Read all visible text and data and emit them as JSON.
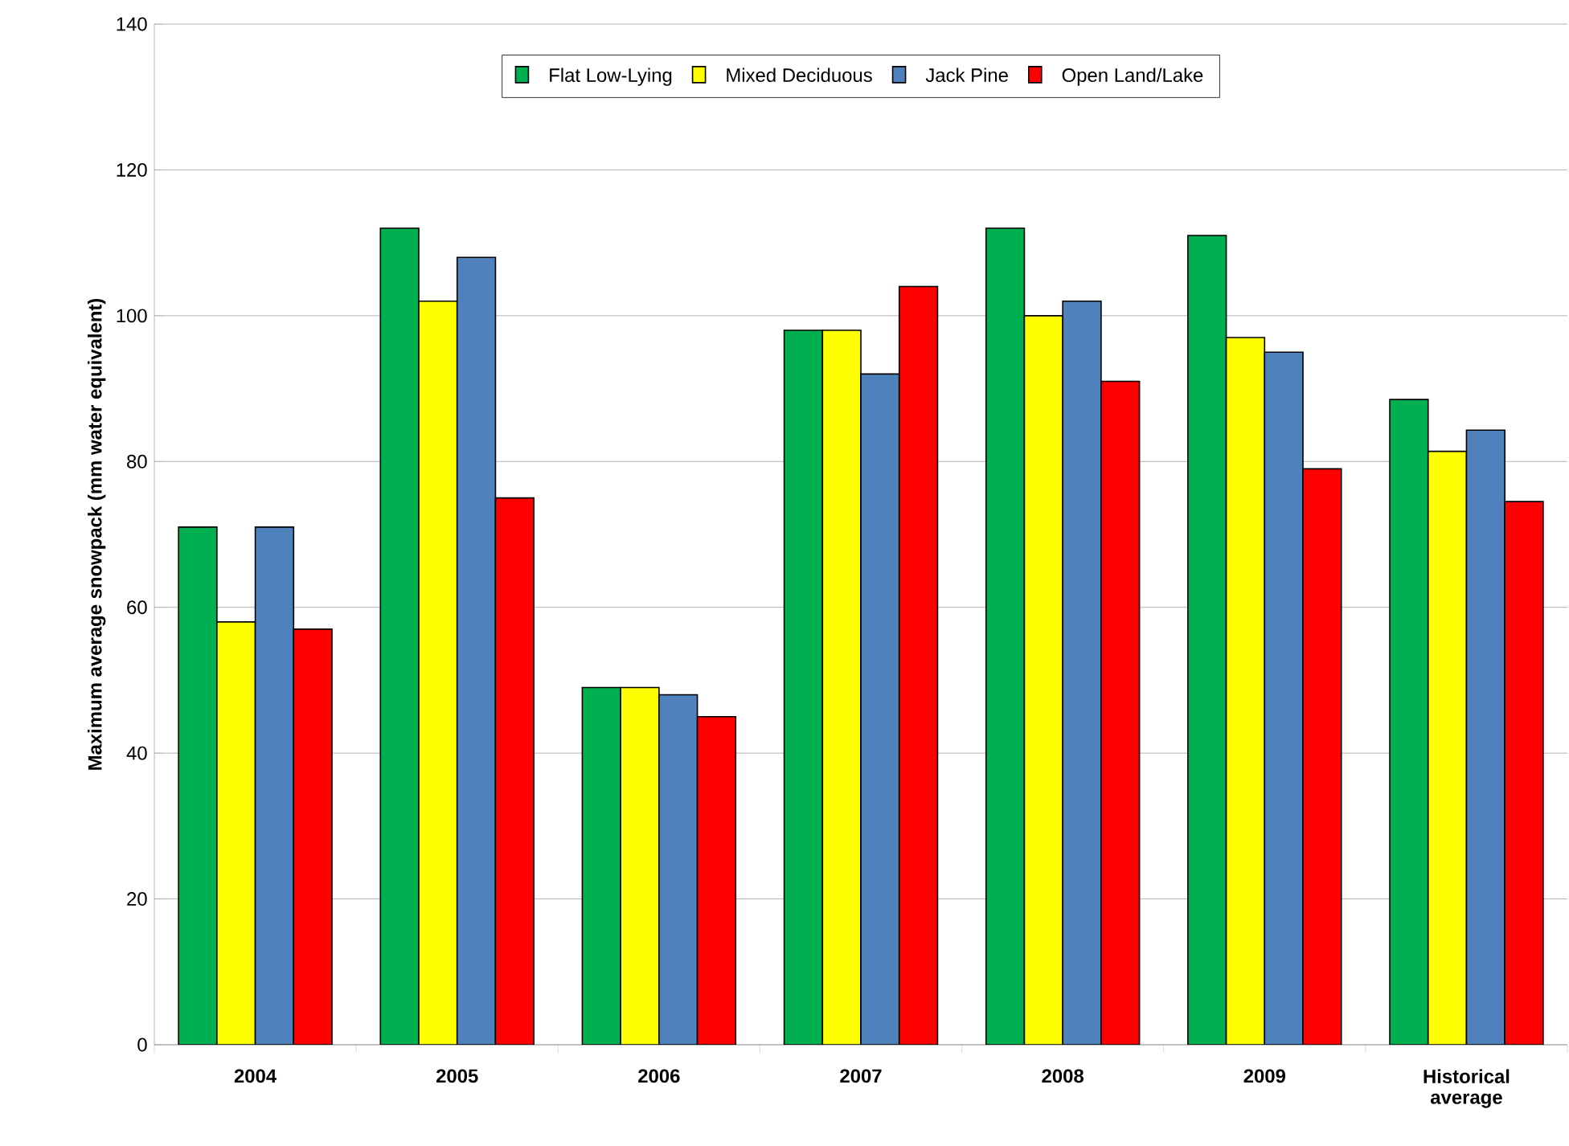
{
  "chart_data": {
    "type": "bar",
    "ylabel": "Maximum average snowpack (mm water equivalent)",
    "categories": [
      "2004",
      "2005",
      "2006",
      "2007",
      "2008",
      "2009",
      "Historical average"
    ],
    "series": [
      {
        "name": "Flat Low-Lying",
        "color": "#00b050",
        "values": [
          71,
          112,
          49,
          98,
          112,
          111,
          88.5
        ]
      },
      {
        "name": "Mixed Deciduous",
        "color": "#ffff00",
        "values": [
          58,
          102,
          49,
          98,
          100,
          97,
          81.4
        ]
      },
      {
        "name": "Jack Pine",
        "color": "#4f81bd",
        "values": [
          71,
          108,
          48,
          92,
          102,
          95,
          84.3
        ]
      },
      {
        "name": "Open Land/Lake",
        "color": "#ff0000",
        "values": [
          57,
          75,
          45,
          104,
          91,
          79,
          74.5
        ]
      }
    ],
    "ylim": [
      0,
      140
    ],
    "yticks": [
      0,
      20,
      40,
      60,
      80,
      100,
      120,
      140
    ],
    "grid": "y",
    "legend": "top"
  }
}
